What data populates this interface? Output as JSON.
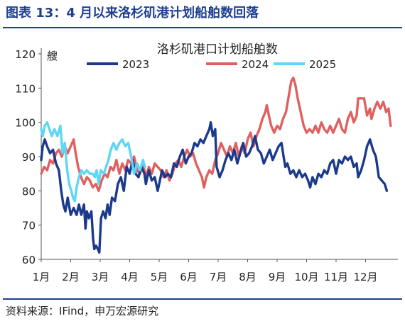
{
  "figure_title": "图表 13：4 月以来洛杉矶港计划船舶数回落",
  "source": "资料来源：IFind，申万宏源研究",
  "chart_data": {
    "type": "line",
    "title": "洛杉矶港口计划船舶数",
    "ylabel": "艘",
    "ylim": [
      60,
      120
    ],
    "yticks": [
      60,
      70,
      80,
      90,
      100,
      110,
      120
    ],
    "xlim": [
      1,
      13.2
    ],
    "xticks": [
      {
        "label": "1月",
        "x": 1
      },
      {
        "label": "2月",
        "x": 2
      },
      {
        "label": "3月",
        "x": 3
      },
      {
        "label": "4月",
        "x": 4
      },
      {
        "label": "5月",
        "x": 5
      },
      {
        "label": "6月",
        "x": 6
      },
      {
        "label": "7月",
        "x": 7
      },
      {
        "label": "8月",
        "x": 8
      },
      {
        "label": "9月",
        "x": 9
      },
      {
        "label": "10月",
        "x": 10
      },
      {
        "label": "11月",
        "x": 11
      },
      {
        "label": "12月",
        "x": 12
      }
    ],
    "legend_position": "top",
    "grid": false,
    "series": [
      {
        "name": "2023",
        "color": "#1c3a8c",
        "points": [
          [
            1.0,
            89
          ],
          [
            1.05,
            93
          ],
          [
            1.12,
            95
          ],
          [
            1.2,
            93
          ],
          [
            1.3,
            91
          ],
          [
            1.4,
            92
          ],
          [
            1.5,
            88
          ],
          [
            1.6,
            86
          ],
          [
            1.68,
            80
          ],
          [
            1.75,
            76
          ],
          [
            1.82,
            74
          ],
          [
            1.9,
            78
          ],
          [
            2.0,
            73
          ],
          [
            2.1,
            75
          ],
          [
            2.2,
            73
          ],
          [
            2.28,
            76
          ],
          [
            2.36,
            73
          ],
          [
            2.45,
            76
          ],
          [
            2.5,
            69
          ],
          [
            2.55,
            74
          ],
          [
            2.62,
            72
          ],
          [
            2.7,
            74
          ],
          [
            2.76,
            66
          ],
          [
            2.8,
            63
          ],
          [
            2.86,
            64
          ],
          [
            2.92,
            63
          ],
          [
            2.97,
            62
          ],
          [
            3.03,
            72
          ],
          [
            3.1,
            74
          ],
          [
            3.18,
            72
          ],
          [
            3.25,
            76
          ],
          [
            3.32,
            73
          ],
          [
            3.4,
            78
          ],
          [
            3.5,
            77
          ],
          [
            3.6,
            82
          ],
          [
            3.7,
            84
          ],
          [
            3.8,
            80
          ],
          [
            3.9,
            87
          ],
          [
            4.0,
            85
          ],
          [
            4.1,
            89
          ],
          [
            4.2,
            85
          ],
          [
            4.3,
            84
          ],
          [
            4.4,
            87
          ],
          [
            4.5,
            85
          ],
          [
            4.55,
            82
          ],
          [
            4.65,
            86
          ],
          [
            4.75,
            83
          ],
          [
            4.85,
            84
          ],
          [
            4.95,
            80
          ],
          [
            5.0,
            82
          ],
          [
            5.1,
            86
          ],
          [
            5.2,
            84
          ],
          [
            5.3,
            85
          ],
          [
            5.4,
            84
          ],
          [
            5.5,
            88
          ],
          [
            5.6,
            87
          ],
          [
            5.7,
            90
          ],
          [
            5.8,
            92
          ],
          [
            5.9,
            88
          ],
          [
            6.0,
            90
          ],
          [
            6.1,
            91
          ],
          [
            6.2,
            94
          ],
          [
            6.3,
            93
          ],
          [
            6.4,
            95
          ],
          [
            6.5,
            94
          ],
          [
            6.6,
            96
          ],
          [
            6.7,
            98
          ],
          [
            6.75,
            100
          ],
          [
            6.82,
            96
          ],
          [
            6.9,
            98
          ],
          [
            6.95,
            87
          ],
          [
            7.05,
            84
          ],
          [
            7.15,
            86
          ],
          [
            7.25,
            89
          ],
          [
            7.35,
            91
          ],
          [
            7.45,
            89
          ],
          [
            7.55,
            92
          ],
          [
            7.65,
            88
          ],
          [
            7.75,
            91
          ],
          [
            7.85,
            94
          ],
          [
            7.95,
            90
          ],
          [
            8.05,
            91
          ],
          [
            8.15,
            93
          ],
          [
            8.25,
            96
          ],
          [
            8.35,
            92
          ],
          [
            8.45,
            91
          ],
          [
            8.55,
            88
          ],
          [
            8.65,
            90
          ],
          [
            8.75,
            92
          ],
          [
            8.85,
            89
          ],
          [
            8.95,
            91
          ],
          [
            9.05,
            93
          ],
          [
            9.15,
            94
          ],
          [
            9.22,
            90
          ],
          [
            9.28,
            87
          ],
          [
            9.35,
            88
          ],
          [
            9.45,
            85
          ],
          [
            9.55,
            86
          ],
          [
            9.65,
            84
          ],
          [
            9.75,
            86
          ],
          [
            9.85,
            84
          ],
          [
            9.95,
            85
          ],
          [
            10.05,
            83
          ],
          [
            10.12,
            81
          ],
          [
            10.2,
            84
          ],
          [
            10.3,
            82
          ],
          [
            10.4,
            85
          ],
          [
            10.5,
            84
          ],
          [
            10.6,
            86
          ],
          [
            10.7,
            85
          ],
          [
            10.8,
            88
          ],
          [
            10.9,
            89
          ],
          [
            11.0,
            85
          ],
          [
            11.1,
            89
          ],
          [
            11.2,
            88
          ],
          [
            11.3,
            90
          ],
          [
            11.4,
            89
          ],
          [
            11.5,
            90
          ],
          [
            11.6,
            87
          ],
          [
            11.7,
            88
          ],
          [
            11.75,
            84
          ],
          [
            11.85,
            86
          ],
          [
            11.95,
            89
          ],
          [
            12.05,
            93
          ],
          [
            12.15,
            95
          ],
          [
            12.25,
            92
          ],
          [
            12.35,
            90
          ],
          [
            12.45,
            84
          ],
          [
            12.55,
            83
          ],
          [
            12.65,
            82
          ],
          [
            12.72,
            80
          ]
        ]
      },
      {
        "name": "2024",
        "color": "#e06060",
        "points": [
          [
            1.0,
            85
          ],
          [
            1.1,
            87
          ],
          [
            1.2,
            86
          ],
          [
            1.3,
            89
          ],
          [
            1.4,
            88
          ],
          [
            1.5,
            91
          ],
          [
            1.6,
            92
          ],
          [
            1.7,
            90
          ],
          [
            1.8,
            93
          ],
          [
            1.9,
            91
          ],
          [
            2.0,
            93
          ],
          [
            2.1,
            95
          ],
          [
            2.15,
            92
          ],
          [
            2.25,
            87
          ],
          [
            2.35,
            84
          ],
          [
            2.45,
            82
          ],
          [
            2.55,
            84
          ],
          [
            2.65,
            83
          ],
          [
            2.75,
            81
          ],
          [
            2.85,
            82
          ],
          [
            2.95,
            80
          ],
          [
            3.05,
            83
          ],
          [
            3.15,
            85
          ],
          [
            3.25,
            84
          ],
          [
            3.35,
            87
          ],
          [
            3.45,
            86
          ],
          [
            3.55,
            89
          ],
          [
            3.65,
            85
          ],
          [
            3.75,
            88
          ],
          [
            3.85,
            86
          ],
          [
            3.95,
            89
          ],
          [
            4.05,
            88
          ],
          [
            4.15,
            90
          ],
          [
            4.25,
            86
          ],
          [
            4.35,
            85
          ],
          [
            4.45,
            88
          ],
          [
            4.55,
            84
          ],
          [
            4.65,
            87
          ],
          [
            4.75,
            85
          ],
          [
            4.85,
            88
          ],
          [
            4.95,
            87
          ],
          [
            5.05,
            86
          ],
          [
            5.15,
            84
          ],
          [
            5.25,
            86
          ],
          [
            5.35,
            83
          ],
          [
            5.45,
            85
          ],
          [
            5.55,
            88
          ],
          [
            5.65,
            89
          ],
          [
            5.75,
            87
          ],
          [
            5.85,
            90
          ],
          [
            5.95,
            92
          ],
          [
            6.05,
            90
          ],
          [
            6.15,
            91
          ],
          [
            6.25,
            88
          ],
          [
            6.35,
            86
          ],
          [
            6.45,
            84
          ],
          [
            6.52,
            81
          ],
          [
            6.6,
            84
          ],
          [
            6.7,
            86
          ],
          [
            6.8,
            85
          ],
          [
            6.9,
            89
          ],
          [
            7.0,
            91
          ],
          [
            7.1,
            94
          ],
          [
            7.2,
            92
          ],
          [
            7.3,
            90
          ],
          [
            7.4,
            93
          ],
          [
            7.5,
            91
          ],
          [
            7.6,
            94
          ],
          [
            7.7,
            90
          ],
          [
            7.8,
            93
          ],
          [
            7.9,
            91
          ],
          [
            8.0,
            95
          ],
          [
            8.1,
            97
          ],
          [
            8.2,
            93
          ],
          [
            8.3,
            96
          ],
          [
            8.4,
            98
          ],
          [
            8.5,
            101
          ],
          [
            8.6,
            103
          ],
          [
            8.65,
            105
          ],
          [
            8.72,
            102
          ],
          [
            8.8,
            99
          ],
          [
            8.9,
            97
          ],
          [
            9.0,
            99
          ],
          [
            9.1,
            98
          ],
          [
            9.2,
            101
          ],
          [
            9.3,
            103
          ],
          [
            9.4,
            108
          ],
          [
            9.48,
            112
          ],
          [
            9.55,
            113
          ],
          [
            9.62,
            111
          ],
          [
            9.7,
            107
          ],
          [
            9.8,
            103
          ],
          [
            9.9,
            99
          ],
          [
            10.0,
            97
          ],
          [
            10.1,
            98
          ],
          [
            10.2,
            97
          ],
          [
            10.3,
            99
          ],
          [
            10.4,
            97
          ],
          [
            10.5,
            100
          ],
          [
            10.6,
            98
          ],
          [
            10.7,
            97
          ],
          [
            10.8,
            99
          ],
          [
            10.9,
            97
          ],
          [
            11.0,
            99
          ],
          [
            11.1,
            101
          ],
          [
            11.2,
            98
          ],
          [
            11.3,
            97
          ],
          [
            11.4,
            101
          ],
          [
            11.5,
            103
          ],
          [
            11.6,
            100
          ],
          [
            11.7,
            102
          ],
          [
            11.75,
            107
          ],
          [
            11.85,
            107
          ],
          [
            11.95,
            107
          ],
          [
            12.05,
            102
          ],
          [
            12.15,
            104
          ],
          [
            12.2,
            101
          ],
          [
            12.3,
            104
          ],
          [
            12.4,
            106
          ],
          [
            12.5,
            104
          ],
          [
            12.6,
            106
          ],
          [
            12.7,
            103
          ],
          [
            12.78,
            104
          ],
          [
            12.85,
            99
          ]
        ]
      },
      {
        "name": "2025",
        "color": "#5fd6f5",
        "points": [
          [
            1.0,
            98
          ],
          [
            1.05,
            96
          ],
          [
            1.12,
            99
          ],
          [
            1.2,
            100
          ],
          [
            1.28,
            98
          ],
          [
            1.36,
            96
          ],
          [
            1.45,
            98
          ],
          [
            1.55,
            96
          ],
          [
            1.65,
            99
          ],
          [
            1.72,
            91
          ],
          [
            1.8,
            94
          ],
          [
            1.88,
            86
          ],
          [
            1.95,
            82
          ],
          [
            2.02,
            80
          ],
          [
            2.08,
            78
          ],
          [
            2.14,
            77
          ],
          [
            2.2,
            81
          ],
          [
            2.28,
            84
          ],
          [
            2.36,
            86
          ],
          [
            2.45,
            85
          ],
          [
            2.55,
            86
          ],
          [
            2.65,
            85
          ],
          [
            2.75,
            85
          ],
          [
            2.82,
            84
          ],
          [
            2.88,
            86
          ],
          [
            2.95,
            82
          ],
          [
            3.02,
            86
          ],
          [
            3.12,
            85
          ],
          [
            3.2,
            87
          ],
          [
            3.28,
            89
          ],
          [
            3.36,
            92
          ],
          [
            3.45,
            94
          ],
          [
            3.55,
            92
          ],
          [
            3.65,
            94
          ],
          [
            3.75,
            95
          ],
          [
            3.85,
            93
          ],
          [
            3.95,
            94
          ],
          [
            4.05,
            90
          ],
          [
            4.15,
            85
          ],
          [
            4.25,
            88
          ],
          [
            4.35,
            86
          ],
          [
            4.45,
            89
          ],
          [
            4.52,
            87
          ]
        ]
      }
    ]
  }
}
